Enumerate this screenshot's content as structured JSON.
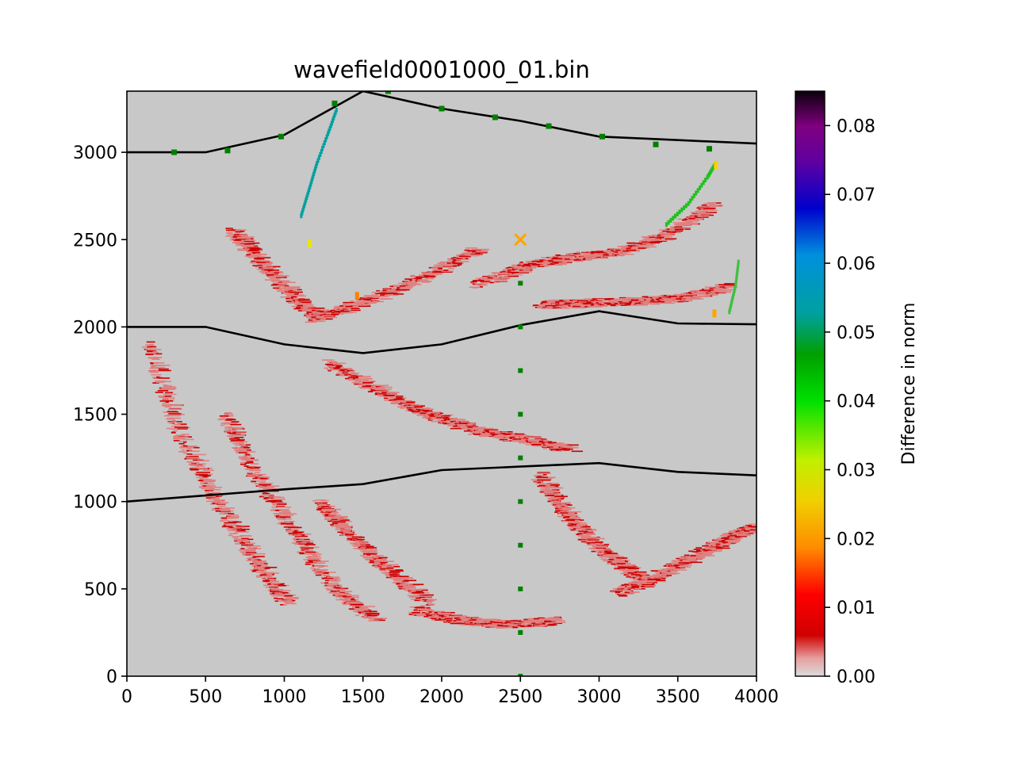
{
  "chart_data": {
    "type": "heatmap",
    "title": "wavefield0001000_01.bin",
    "xlim": [
      0,
      4000
    ],
    "ylim": [
      0,
      3350
    ],
    "x_ticks": [
      0,
      500,
      1000,
      1500,
      2000,
      2500,
      3000,
      3500,
      4000
    ],
    "y_ticks": [
      0,
      500,
      1000,
      1500,
      2000,
      2500,
      3000
    ],
    "background_color": "#c8c8c8",
    "colorbar": {
      "label": "Difference in norm",
      "range": [
        0.0,
        0.085
      ],
      "ticks": [
        "0.00",
        "0.01",
        "0.02",
        "0.03",
        "0.04",
        "0.05",
        "0.06",
        "0.07",
        "0.08"
      ],
      "colormap": "nipy_spectral (low values light grey to red)"
    },
    "interfaces": [
      {
        "x": [
          0,
          500,
          1000,
          1500,
          2000,
          2500,
          3000,
          3500,
          4000
        ],
        "y": [
          3000,
          3000,
          3100,
          3350,
          3250,
          3180,
          3090,
          3070,
          3050
        ]
      },
      {
        "x": [
          0,
          500,
          1000,
          1500,
          2000,
          2500,
          3000,
          3500,
          4000
        ],
        "y": [
          2000,
          2000,
          1900,
          1850,
          1900,
          2010,
          2090,
          2020,
          2015
        ]
      },
      {
        "x": [
          0,
          500,
          1000,
          1500,
          2000,
          2500,
          3000,
          3500,
          4000
        ],
        "y": [
          1000,
          1035,
          1070,
          1100,
          1180,
          1200,
          1220,
          1170,
          1150
        ]
      }
    ],
    "receivers_surface": {
      "color": "#008000",
      "x": [
        300,
        640,
        980,
        1320,
        1660,
        2000,
        2340,
        2680,
        3020,
        3360,
        3700
      ],
      "y": [
        3000,
        3010,
        3090,
        3280,
        3350,
        3250,
        3200,
        3150,
        3090,
        3045,
        3020
      ]
    },
    "receivers_borehole": {
      "color": "#008000",
      "x": 2500,
      "y": [
        0,
        250,
        500,
        750,
        1000,
        1250,
        1500,
        1750,
        2000,
        2250
      ]
    },
    "source": {
      "x": 2500,
      "y": 2500,
      "marker": "x",
      "color": "#ffa500"
    },
    "anomaly_bands": [
      {
        "points": [
          [
            120,
            1900
          ],
          [
            300,
            1400
          ],
          [
            550,
            1000
          ],
          [
            800,
            650
          ],
          [
            1000,
            420
          ]
        ],
        "color": "#cc0000"
      },
      {
        "points": [
          [
            600,
            1500
          ],
          [
            800,
            1150
          ],
          [
            1050,
            800
          ],
          [
            1300,
            500
          ],
          [
            1550,
            320
          ]
        ],
        "color": "#cc0000"
      },
      {
        "points": [
          [
            1250,
            1800
          ],
          [
            1600,
            1630
          ],
          [
            1900,
            1500
          ],
          [
            2200,
            1410
          ],
          [
            2500,
            1360
          ],
          [
            2800,
            1300
          ]
        ],
        "color": "#cc0000"
      },
      {
        "points": [
          [
            2600,
            1150
          ],
          [
            2750,
            950
          ],
          [
            2900,
            800
          ],
          [
            3100,
            650
          ],
          [
            3300,
            530
          ]
        ],
        "color": "#cc0000"
      },
      {
        "points": [
          [
            3100,
            480
          ],
          [
            3350,
            580
          ],
          [
            3600,
            700
          ],
          [
            3800,
            790
          ],
          [
            3950,
            860
          ]
        ],
        "color": "#cc0000"
      },
      {
        "points": [
          [
            650,
            2550
          ],
          [
            800,
            2400
          ],
          [
            1000,
            2200
          ],
          [
            1200,
            2050
          ]
        ],
        "color": "#cc0000"
      },
      {
        "points": [
          [
            2200,
            2250
          ],
          [
            2500,
            2350
          ],
          [
            2800,
            2400
          ],
          [
            3100,
            2430
          ],
          [
            3400,
            2530
          ],
          [
            3700,
            2700
          ]
        ],
        "color": "#cc0000"
      },
      {
        "points": [
          [
            2600,
            2130
          ],
          [
            2900,
            2140
          ],
          [
            3200,
            2150
          ],
          [
            3500,
            2170
          ],
          [
            3800,
            2230
          ]
        ],
        "color": "#cc0000"
      },
      {
        "points": [
          [
            1150,
            2050
          ],
          [
            1500,
            2150
          ],
          [
            1900,
            2300
          ],
          [
            2200,
            2450
          ]
        ],
        "color": "#cc0000"
      },
      {
        "points": [
          [
            1200,
            1000
          ],
          [
            1400,
            800
          ],
          [
            1650,
            600
          ],
          [
            1900,
            420
          ]
        ],
        "color": "#cc0000"
      },
      {
        "points": [
          [
            1800,
            380
          ],
          [
            2100,
            320
          ],
          [
            2400,
            300
          ],
          [
            2700,
            320
          ]
        ],
        "color": "#cc0000"
      }
    ],
    "anomaly_traces_colored": [
      {
        "points": [
          [
            1100,
            2650
          ],
          [
            1150,
            2800
          ],
          [
            1200,
            2950
          ],
          [
            1270,
            3120
          ],
          [
            1330,
            3270
          ]
        ],
        "color": "#00a0a0"
      },
      {
        "points": [
          [
            3420,
            2600
          ],
          [
            3560,
            2720
          ],
          [
            3680,
            2870
          ],
          [
            3740,
            2960
          ]
        ],
        "color": "#20c020"
      },
      {
        "points": [
          [
            3820,
            2100
          ],
          [
            3860,
            2250
          ],
          [
            3880,
            2400
          ]
        ],
        "color": "#40c040"
      }
    ],
    "color_patches": [
      {
        "x": 3730,
        "y": 2950,
        "color": "#ffd000"
      },
      {
        "x": 3720,
        "y": 2100,
        "color": "#ffa500"
      },
      {
        "x": 1150,
        "y": 2500,
        "color": "#e8e800"
      },
      {
        "x": 1450,
        "y": 2200,
        "color": "#ff8000"
      }
    ]
  }
}
